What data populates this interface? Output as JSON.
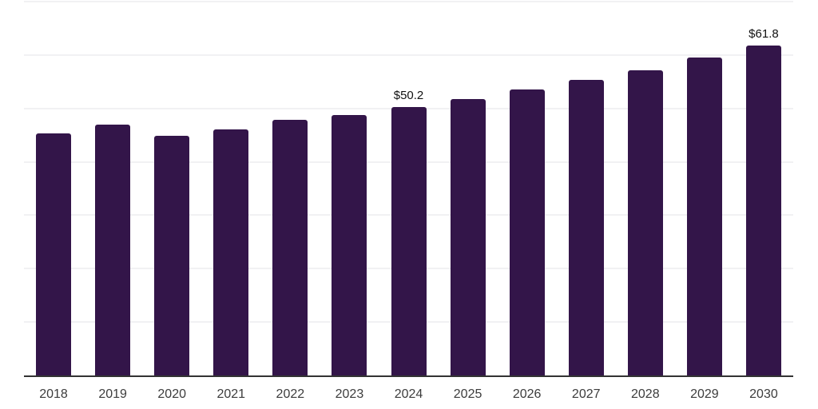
{
  "chart_data": {
    "type": "bar",
    "title": "",
    "xlabel": "",
    "ylabel": "",
    "categories": [
      "2018",
      "2019",
      "2020",
      "2021",
      "2022",
      "2023",
      "2024",
      "2025",
      "2026",
      "2027",
      "2028",
      "2029",
      "2030"
    ],
    "values": [
      45.3,
      47.0,
      44.8,
      46.1,
      47.8,
      48.7,
      50.2,
      51.8,
      53.6,
      55.3,
      57.2,
      59.5,
      61.8
    ],
    "data_labels": [
      "",
      "",
      "",
      "",
      "",
      "",
      "$50.2",
      "",
      "",
      "",
      "",
      "",
      "$61.8"
    ],
    "ylim": [
      0,
      70
    ],
    "grid_step": 10,
    "grid": "horizontal",
    "legend": "none",
    "colors": {
      "bar": "#331549",
      "gridline": "#f1f1f3",
      "axis_line": "#333333",
      "value_label": "#111111",
      "tick_label": "#3c3c3c",
      "background": "#ffffff"
    }
  }
}
